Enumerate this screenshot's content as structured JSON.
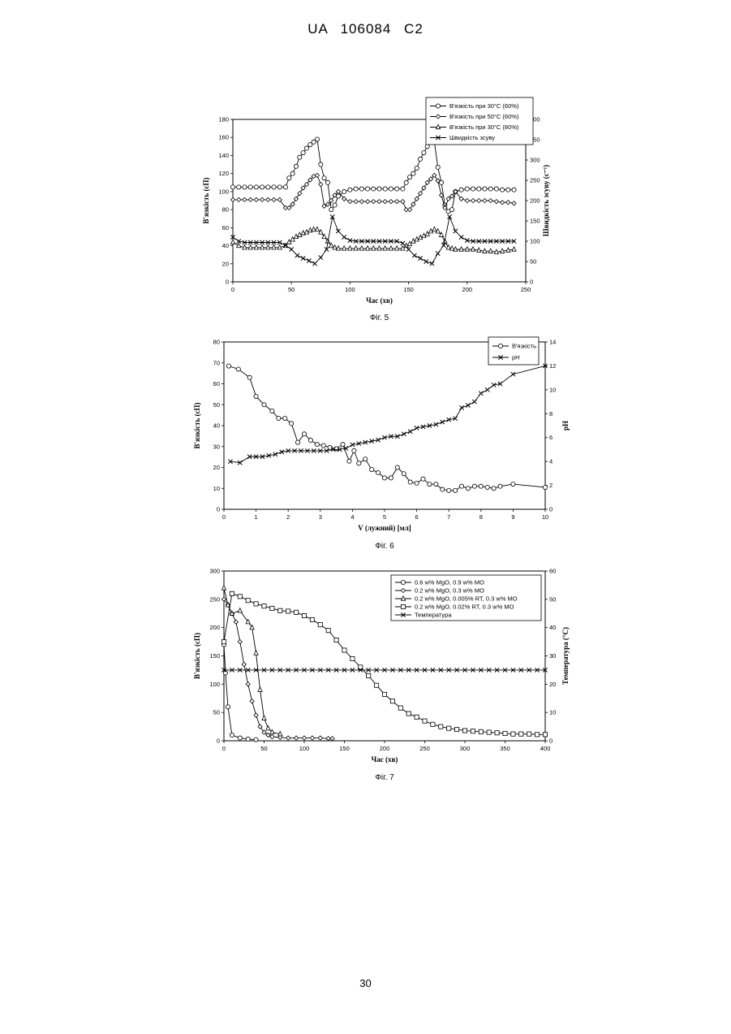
{
  "page": {
    "header": "UA 106084 C2",
    "page_number": "30"
  },
  "chart_data": [
    {
      "id": "fig5",
      "type": "line",
      "caption": "Фіг. 5",
      "xlabel": "Час (хв)",
      "ylabel": "В'язкість (сП)",
      "y2label": "Швидкість зсуву (с⁻¹)",
      "xlim": [
        0,
        250
      ],
      "xticks": [
        0,
        50,
        100,
        150,
        200,
        250
      ],
      "ylim": [
        0,
        180
      ],
      "yticks": [
        0,
        20,
        40,
        60,
        80,
        100,
        120,
        140,
        160,
        180
      ],
      "y2lim": [
        0,
        400
      ],
      "y2ticks": [
        0,
        50,
        100,
        150,
        200,
        250,
        300,
        350,
        400
      ],
      "legend_position": "top-right",
      "series": [
        {
          "name": "В'язкість при 30°C (60%)",
          "marker": "circle",
          "axis": "left",
          "x": [
            0,
            5,
            10,
            15,
            20,
            25,
            30,
            35,
            40,
            45,
            48,
            51,
            54,
            57,
            60,
            63,
            66,
            69,
            72,
            75,
            78,
            81,
            84,
            87,
            90,
            95,
            100,
            105,
            110,
            115,
            120,
            125,
            130,
            135,
            140,
            145,
            148,
            151,
            154,
            157,
            160,
            163,
            166,
            169,
            172,
            175,
            178,
            181,
            184,
            187,
            190,
            195,
            200,
            205,
            210,
            215,
            220,
            225,
            230,
            235,
            240
          ],
          "y": [
            105,
            105,
            105,
            105,
            105,
            105,
            105,
            105,
            105,
            105,
            115,
            120,
            128,
            138,
            143,
            148,
            152,
            155,
            158,
            130,
            115,
            110,
            80,
            85,
            95,
            100,
            102,
            103,
            103,
            103,
            103,
            103,
            103,
            103,
            103,
            103,
            110,
            116,
            120,
            126,
            136,
            143,
            150,
            155,
            155,
            127,
            110,
            85,
            78,
            80,
            100,
            102,
            103,
            103,
            103,
            103,
            103,
            103,
            102,
            102,
            102
          ]
        },
        {
          "name": "В'язкість при 50°C (60%)",
          "marker": "diamond",
          "axis": "left",
          "x": [
            0,
            5,
            10,
            15,
            20,
            25,
            30,
            35,
            40,
            45,
            48,
            51,
            54,
            57,
            60,
            63,
            66,
            69,
            72,
            75,
            78,
            81,
            84,
            87,
            90,
            95,
            100,
            105,
            110,
            115,
            120,
            125,
            130,
            135,
            140,
            145,
            148,
            151,
            154,
            157,
            160,
            163,
            166,
            169,
            172,
            175,
            178,
            181,
            184,
            187,
            190,
            195,
            200,
            205,
            210,
            215,
            220,
            225,
            230,
            235,
            240
          ],
          "y": [
            91,
            91,
            91,
            91,
            91,
            91,
            91,
            91,
            91,
            82,
            82,
            86,
            92,
            98,
            104,
            108,
            113,
            117,
            118,
            108,
            84,
            86,
            90,
            96,
            100,
            92,
            89,
            89,
            89,
            89,
            89,
            89,
            89,
            89,
            89,
            89,
            80,
            80,
            86,
            92,
            98,
            104,
            110,
            114,
            118,
            112,
            96,
            82,
            92,
            95,
            100,
            92,
            90,
            90,
            90,
            90,
            90,
            89,
            88,
            88,
            87
          ]
        },
        {
          "name": "В'язкість при 30°C (80%)",
          "marker": "triangle",
          "axis": "left",
          "x": [
            0,
            5,
            10,
            15,
            20,
            25,
            30,
            35,
            40,
            45,
            48,
            51,
            54,
            57,
            60,
            63,
            66,
            69,
            72,
            75,
            78,
            81,
            84,
            87,
            90,
            95,
            100,
            105,
            110,
            115,
            120,
            125,
            130,
            135,
            140,
            145,
            148,
            151,
            154,
            157,
            160,
            163,
            166,
            169,
            172,
            175,
            178,
            181,
            184,
            187,
            190,
            195,
            200,
            205,
            210,
            215,
            220,
            225,
            230,
            235,
            240
          ],
          "y": [
            44,
            40,
            38,
            38,
            38,
            38,
            38,
            38,
            38,
            40,
            44,
            47,
            50,
            52,
            54,
            55,
            57,
            58,
            58,
            55,
            50,
            45,
            40,
            38,
            37,
            37,
            37,
            37,
            37,
            37,
            37,
            37,
            37,
            37,
            37,
            37,
            40,
            42,
            45,
            47,
            49,
            51,
            53,
            56,
            58,
            56,
            52,
            45,
            38,
            37,
            36,
            36,
            36,
            36,
            35,
            34,
            34,
            33,
            34,
            35,
            36
          ]
        },
        {
          "name": "Швидкість зсуву",
          "marker": "x",
          "axis": "right",
          "x": [
            0,
            5,
            10,
            15,
            20,
            25,
            30,
            35,
            40,
            45,
            50,
            55,
            60,
            65,
            70,
            75,
            80,
            85,
            90,
            95,
            100,
            105,
            110,
            115,
            120,
            125,
            130,
            135,
            140,
            145,
            150,
            155,
            160,
            165,
            170,
            175,
            180,
            185,
            190,
            195,
            200,
            205,
            210,
            215,
            220,
            225,
            230,
            235,
            240
          ],
          "y": [
            110,
            100,
            97,
            97,
            97,
            97,
            97,
            97,
            97,
            90,
            80,
            65,
            58,
            52,
            45,
            60,
            80,
            160,
            125,
            110,
            102,
            100,
            100,
            100,
            100,
            100,
            100,
            100,
            100,
            95,
            80,
            65,
            58,
            50,
            45,
            70,
            90,
            160,
            125,
            110,
            102,
            100,
            100,
            100,
            100,
            100,
            100,
            100,
            100
          ]
        }
      ]
    },
    {
      "id": "fig6",
      "type": "line",
      "caption": "Фіг. 6",
      "xlabel": "V (лужний) [мл]",
      "ylabel": "В'язкість (сП)",
      "y2label": "pH",
      "xlim": [
        0,
        10
      ],
      "xticks": [
        0,
        1,
        2,
        3,
        4,
        5,
        6,
        7,
        8,
        9,
        10
      ],
      "ylim": [
        0,
        80
      ],
      "yticks": [
        0,
        10,
        20,
        30,
        40,
        50,
        60,
        70,
        80
      ],
      "y2lim": [
        0,
        14
      ],
      "y2ticks": [
        0,
        2,
        4,
        6,
        8,
        10,
        12,
        14
      ],
      "legend_position": "top-right",
      "series": [
        {
          "name": "В'язкість",
          "marker": "circle",
          "axis": "left",
          "x": [
            0.15,
            0.45,
            0.8,
            1.0,
            1.25,
            1.5,
            1.7,
            1.9,
            2.1,
            2.3,
            2.5,
            2.7,
            2.9,
            3.1,
            3.3,
            3.5,
            3.7,
            3.9,
            4.05,
            4.2,
            4.4,
            4.6,
            4.8,
            5.0,
            5.2,
            5.4,
            5.6,
            5.8,
            6.0,
            6.2,
            6.4,
            6.6,
            6.8,
            7.0,
            7.2,
            7.4,
            7.6,
            7.8,
            8.0,
            8.2,
            8.4,
            8.6,
            9.0,
            10.0
          ],
          "y": [
            68.5,
            67,
            63,
            54,
            50,
            47,
            43.5,
            43.5,
            41,
            32,
            36,
            33,
            31,
            30.5,
            29.5,
            29,
            31,
            23,
            28,
            22,
            24,
            19,
            17.5,
            15,
            15,
            20,
            17,
            13,
            12.5,
            14.5,
            12,
            12,
            9.5,
            9,
            9,
            11,
            10,
            11,
            11,
            10.5,
            10,
            11,
            12,
            10.5
          ]
        },
        {
          "name": "pH",
          "marker": "x",
          "axis": "right",
          "x": [
            0.2,
            0.5,
            0.8,
            1.0,
            1.2,
            1.4,
            1.6,
            1.8,
            2.0,
            2.2,
            2.4,
            2.6,
            2.8,
            3.0,
            3.2,
            3.4,
            3.6,
            3.8,
            4.0,
            4.2,
            4.4,
            4.6,
            4.8,
            5.0,
            5.2,
            5.4,
            5.6,
            5.8,
            6.0,
            6.2,
            6.4,
            6.6,
            6.8,
            7.0,
            7.2,
            7.4,
            7.6,
            7.8,
            8.0,
            8.2,
            8.4,
            8.6,
            9.0,
            10.0
          ],
          "y": [
            4.0,
            3.9,
            4.4,
            4.4,
            4.4,
            4.5,
            4.6,
            4.8,
            4.9,
            4.9,
            4.9,
            4.9,
            4.9,
            4.9,
            4.9,
            5.0,
            5.0,
            5.1,
            5.4,
            5.5,
            5.6,
            5.7,
            5.8,
            6.0,
            6.1,
            6.1,
            6.3,
            6.5,
            6.8,
            6.9,
            7.0,
            7.1,
            7.3,
            7.5,
            7.6,
            8.5,
            8.7,
            9.0,
            9.7,
            10.0,
            10.4,
            10.5,
            11.3,
            12.0
          ]
        }
      ]
    },
    {
      "id": "fig7",
      "type": "line",
      "caption": "Фіг. 7",
      "xlabel": "Час (хв)",
      "ylabel": "В'язкість (сП)",
      "y2label": "Температура (°C)",
      "xlim": [
        0,
        400
      ],
      "xticks": [
        0,
        50,
        100,
        150,
        200,
        250,
        300,
        350,
        400
      ],
      "ylim": [
        0,
        300
      ],
      "yticks": [
        0,
        50,
        100,
        150,
        200,
        250,
        300
      ],
      "y2lim": [
        0,
        60
      ],
      "y2ticks": [
        0,
        10,
        20,
        30,
        40,
        50,
        60
      ],
      "legend_position": "top-right",
      "series": [
        {
          "name": "0.6 w% MgO, 0.9 w% MO",
          "marker": "circle",
          "axis": "left",
          "x": [
            0,
            2,
            5,
            10,
            20,
            30,
            40
          ],
          "y": [
            170,
            120,
            60,
            10,
            5,
            3,
            2
          ]
        },
        {
          "name": "0.2 w% MgO, 0.3 w% MO",
          "marker": "diamond",
          "axis": "left",
          "x": [
            0,
            5,
            10,
            15,
            20,
            25,
            30,
            35,
            40,
            45,
            50,
            55,
            60,
            70,
            80,
            90,
            100,
            110,
            120,
            130,
            135
          ],
          "y": [
            250,
            240,
            225,
            210,
            175,
            135,
            100,
            70,
            45,
            25,
            15,
            10,
            7,
            6,
            5,
            5,
            5,
            5,
            5,
            4,
            4
          ]
        },
        {
          "name": "0.2 w% MgO, 0.005% RT, 0.3 w% MO",
          "marker": "triangle",
          "axis": "left",
          "x": [
            0,
            5,
            10,
            20,
            30,
            35,
            40,
            45,
            50,
            55,
            60,
            70
          ],
          "y": [
            270,
            240,
            225,
            230,
            210,
            200,
            155,
            90,
            40,
            22,
            15,
            12
          ]
        },
        {
          "name": "0.2 w% MgO, 0.02% RT, 0.3 w% MO",
          "marker": "square",
          "axis": "left",
          "x": [
            0,
            10,
            20,
            30,
            40,
            50,
            60,
            70,
            80,
            90,
            100,
            110,
            120,
            130,
            140,
            150,
            160,
            170,
            180,
            190,
            200,
            210,
            220,
            230,
            240,
            250,
            260,
            270,
            280,
            290,
            300,
            310,
            320,
            330,
            340,
            350,
            360,
            370,
            380,
            390,
            400
          ],
          "y": [
            175,
            260,
            255,
            248,
            242,
            238,
            234,
            230,
            229,
            227,
            221,
            214,
            205,
            195,
            178,
            160,
            145,
            130,
            115,
            98,
            82,
            70,
            58,
            48,
            42,
            35,
            29,
            25,
            22,
            20,
            18,
            17,
            16,
            15,
            14,
            13,
            12,
            12,
            12,
            11,
            11
          ]
        },
        {
          "name": "Температура",
          "marker": "x",
          "axis": "right",
          "x": [
            0,
            10,
            20,
            30,
            40,
            50,
            60,
            70,
            80,
            90,
            100,
            110,
            120,
            130,
            140,
            150,
            160,
            170,
            180,
            190,
            200,
            210,
            220,
            230,
            240,
            250,
            260,
            270,
            280,
            290,
            300,
            310,
            320,
            330,
            340,
            350,
            360,
            370,
            380,
            390,
            400
          ],
          "y": [
            25,
            25,
            25,
            25,
            25,
            25,
            25,
            25,
            25,
            25,
            25,
            25,
            25,
            25,
            25,
            25,
            25,
            25,
            25,
            25,
            25,
            25,
            25,
            25,
            25,
            25,
            25,
            25,
            25,
            25,
            25,
            25,
            25,
            25,
            25,
            25,
            25,
            25,
            25,
            25,
            25
          ]
        }
      ]
    }
  ]
}
